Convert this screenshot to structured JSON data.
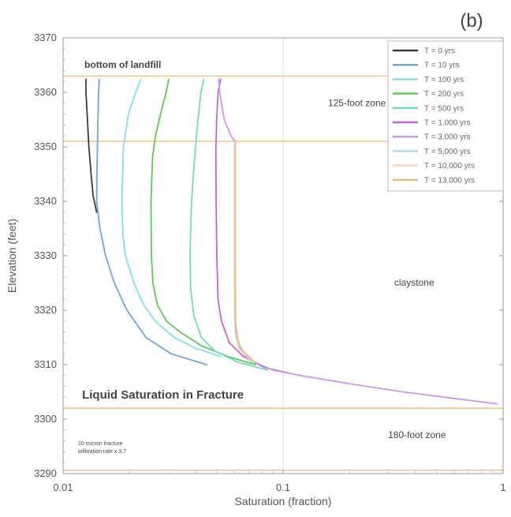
{
  "chart_data": {
    "type": "line",
    "panel_label": "(b)",
    "xlabel": "Saturation (fraction)",
    "ylabel": "Elevation (feet)",
    "xscale": "log",
    "xlim": [
      0.01,
      1
    ],
    "ylim": [
      3290,
      3370
    ],
    "x_ticks": [
      0.01,
      0.1,
      1
    ],
    "x_tick_labels": [
      "0.01",
      "0.1",
      "1"
    ],
    "y_ticks": [
      3290,
      3300,
      3310,
      3320,
      3330,
      3340,
      3350,
      3360,
      3370
    ],
    "y_tick_labels": [
      "3290",
      "3300",
      "3310",
      "3320",
      "3330",
      "3340",
      "3350",
      "3360",
      "3370"
    ],
    "grid": true,
    "legend_position": "top-right",
    "annotations": [
      {
        "text": "bottom of landfill",
        "x": 0.0125,
        "y": 3364.5
      },
      {
        "text": "125-foot zone",
        "x": 0.16,
        "y": 3357.5
      },
      {
        "text": "claystone",
        "x": 0.32,
        "y": 3324.5
      },
      {
        "text": "Liquid Saturation in Fracture",
        "x": 0.0122,
        "y": 3303.8
      },
      {
        "text": "180-foot zone",
        "x": 0.3,
        "y": 3296.5
      },
      {
        "text": "10 micron fracture",
        "x": 0.0117,
        "y": 3295.2
      },
      {
        "text": "infiltration rate x 3.7",
        "x": 0.0117,
        "y": 3293.8
      }
    ],
    "hlines": [
      {
        "y": 3363,
        "color": "#f2c88a"
      },
      {
        "y": 3351,
        "color": "#f2c88a"
      },
      {
        "y": 3302,
        "color": "#f2c88a"
      },
      {
        "y": 3290.6,
        "color": "#f2c88a"
      }
    ],
    "series": [
      {
        "name": "T = 0 yrs",
        "color": "#3a3a3a",
        "points": [
          [
            0.0127,
            3362.4
          ],
          [
            0.0127,
            3360
          ],
          [
            0.0129,
            3355
          ],
          [
            0.0131,
            3350
          ],
          [
            0.0134,
            3345
          ],
          [
            0.0137,
            3341
          ],
          [
            0.0142,
            3338
          ]
        ]
      },
      {
        "name": "T = 10 yrs",
        "color": "#6aa6d8",
        "points": [
          [
            0.0146,
            3362.4
          ],
          [
            0.0145,
            3360
          ],
          [
            0.0144,
            3355
          ],
          [
            0.0143,
            3348
          ],
          [
            0.0142,
            3340
          ],
          [
            0.0147,
            3335
          ],
          [
            0.0156,
            3330
          ],
          [
            0.0171,
            3325
          ],
          [
            0.0195,
            3320
          ],
          [
            0.0238,
            3315
          ],
          [
            0.031,
            3312
          ],
          [
            0.045,
            3310
          ]
        ]
      },
      {
        "name": "T = 100 yrs",
        "color": "#7fe0ea",
        "points": [
          [
            0.0225,
            3362.4
          ],
          [
            0.0214,
            3360
          ],
          [
            0.0198,
            3356
          ],
          [
            0.0188,
            3350
          ],
          [
            0.0185,
            3340
          ],
          [
            0.0187,
            3334
          ],
          [
            0.0192,
            3330
          ],
          [
            0.021,
            3325
          ],
          [
            0.0232,
            3321
          ],
          [
            0.0262,
            3318
          ],
          [
            0.032,
            3315
          ],
          [
            0.04,
            3313
          ],
          [
            0.052,
            3311.5
          ]
        ]
      },
      {
        "name": "T = 200 yrs",
        "color": "#5cc855",
        "points": [
          [
            0.0302,
            3362.4
          ],
          [
            0.0294,
            3360
          ],
          [
            0.0277,
            3356
          ],
          [
            0.0263,
            3352
          ],
          [
            0.0255,
            3348
          ],
          [
            0.0251,
            3340
          ],
          [
            0.0252,
            3330
          ],
          [
            0.0256,
            3325
          ],
          [
            0.0268,
            3321
          ],
          [
            0.0295,
            3318
          ],
          [
            0.034,
            3316
          ],
          [
            0.0425,
            3313.5
          ],
          [
            0.056,
            3311.5
          ],
          [
            0.075,
            3310
          ]
        ]
      },
      {
        "name": "T = 500 yrs",
        "color": "#70dcbc",
        "points": [
          [
            0.0436,
            3362.4
          ],
          [
            0.0423,
            3360
          ],
          [
            0.0404,
            3352
          ],
          [
            0.0391,
            3345
          ],
          [
            0.0384,
            3340
          ],
          [
            0.038,
            3335
          ],
          [
            0.0378,
            3330
          ],
          [
            0.038,
            3324
          ],
          [
            0.0393,
            3319
          ],
          [
            0.0425,
            3315
          ],
          [
            0.049,
            3312.5
          ],
          [
            0.062,
            3310.5
          ],
          [
            0.085,
            3309
          ]
        ]
      },
      {
        "name": "T = 1,000 yrs",
        "color": "#c366d4",
        "points": [
          [
            0.052,
            3362.4
          ],
          [
            0.0506,
            3360
          ],
          [
            0.0499,
            3355
          ],
          [
            0.0495,
            3350
          ],
          [
            0.0496,
            3340
          ],
          [
            0.05,
            3330
          ],
          [
            0.0506,
            3322
          ],
          [
            0.0525,
            3318
          ],
          [
            0.057,
            3314
          ],
          [
            0.066,
            3311.5
          ],
          [
            0.082,
            3309.5
          ],
          [
            0.105,
            3308.5
          ]
        ]
      },
      {
        "name": "T = 3,000 yrs",
        "color": "#cc95ea",
        "points": [
          [
            0.051,
            3362.4
          ],
          [
            0.0515,
            3360
          ],
          [
            0.054,
            3355
          ],
          [
            0.058,
            3352
          ],
          [
            0.0605,
            3351
          ],
          [
            0.0603,
            3345
          ],
          [
            0.0603,
            3335
          ],
          [
            0.0603,
            3325
          ],
          [
            0.0605,
            3318
          ],
          [
            0.0625,
            3314
          ],
          [
            0.069,
            3311
          ],
          [
            0.09,
            3309
          ],
          [
            0.12,
            3308
          ],
          [
            0.2,
            3306.5
          ],
          [
            0.35,
            3305
          ],
          [
            0.6,
            3303.8
          ],
          [
            0.94,
            3302.8
          ]
        ]
      },
      {
        "name": "T = 5,000 yrs",
        "color": "#a8d8f0",
        "points": [
          [
            0.0602,
            3351
          ],
          [
            0.0602,
            3340
          ],
          [
            0.0602,
            3330
          ],
          [
            0.0603,
            3320
          ],
          [
            0.0606,
            3316
          ],
          [
            0.063,
            3313
          ],
          [
            0.072,
            3310.5
          ]
        ]
      },
      {
        "name": "T = 10,000 yrs",
        "color": "#f6d2c2",
        "points": [
          [
            0.0604,
            3351
          ],
          [
            0.0604,
            3340
          ],
          [
            0.0604,
            3330
          ],
          [
            0.0605,
            3320
          ],
          [
            0.0608,
            3316
          ],
          [
            0.0635,
            3313
          ],
          [
            0.073,
            3310.5
          ]
        ]
      },
      {
        "name": "T = 13,000 yrs",
        "color": "#f2b87a",
        "points": [
          [
            0.0606,
            3351
          ],
          [
            0.0606,
            3340
          ],
          [
            0.0606,
            3330
          ],
          [
            0.0607,
            3320
          ],
          [
            0.061,
            3316
          ],
          [
            0.064,
            3313
          ],
          [
            0.074,
            3310.5
          ]
        ]
      }
    ]
  }
}
